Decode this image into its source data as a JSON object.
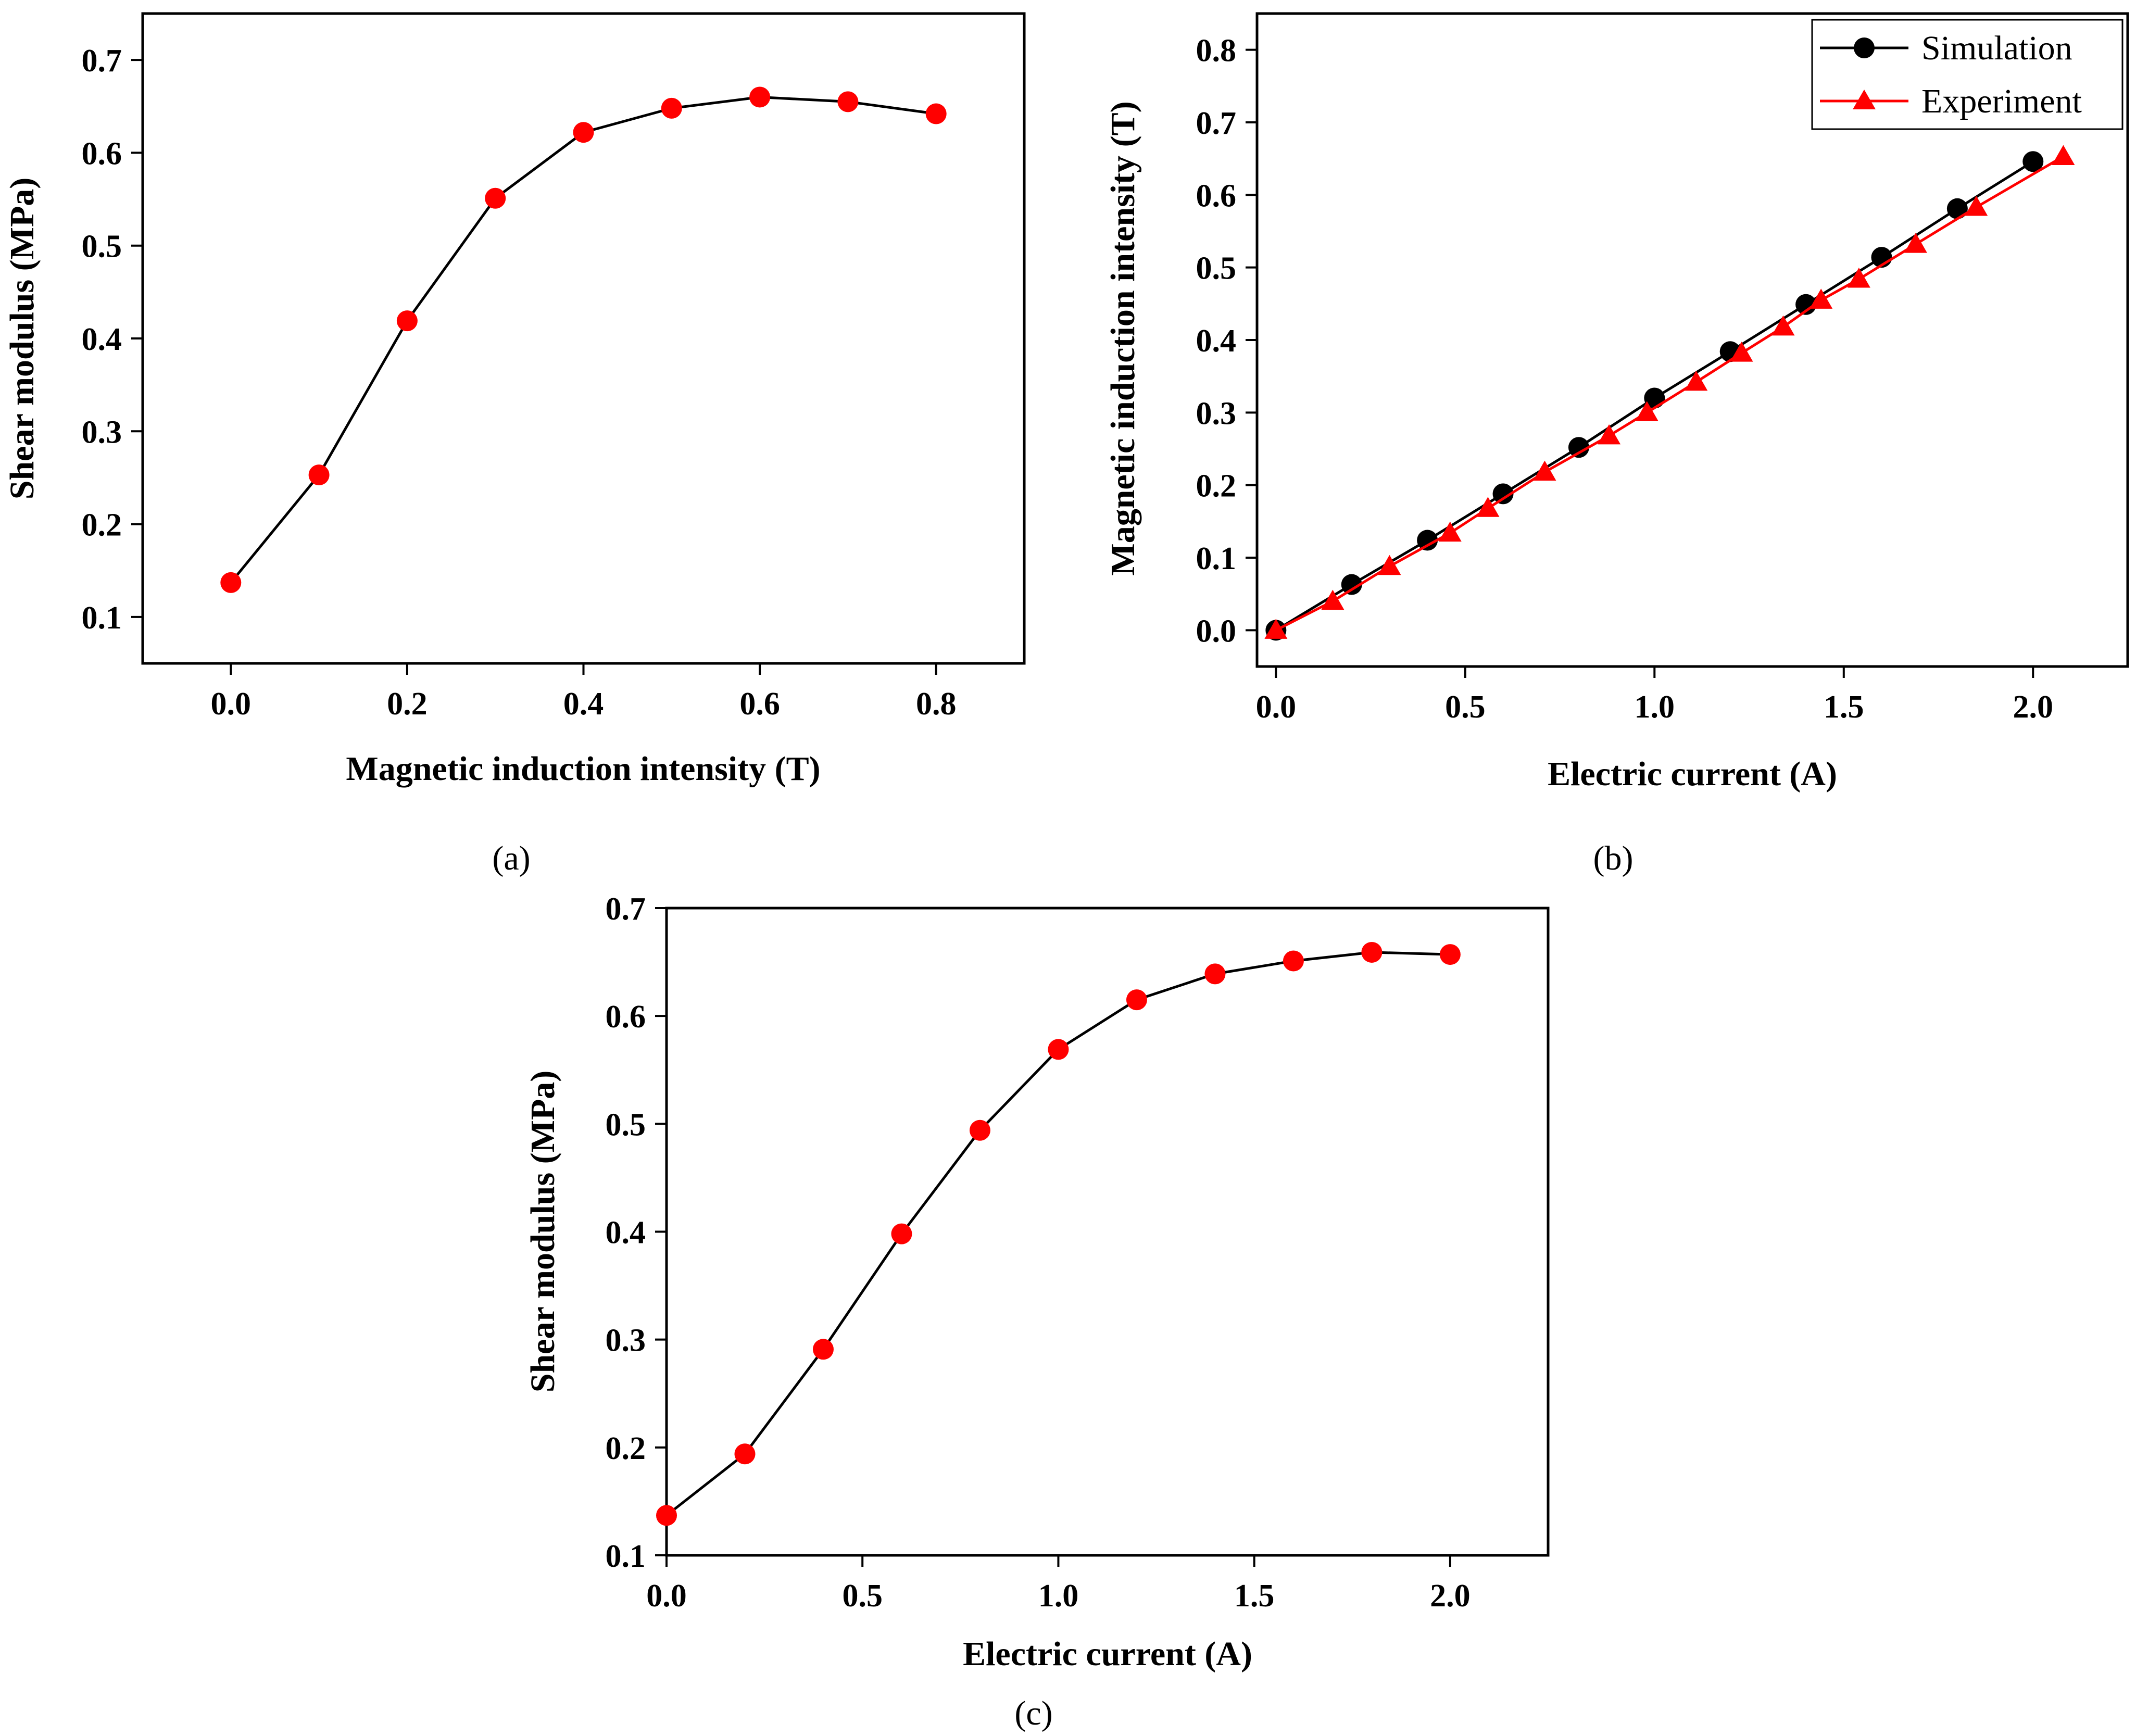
{
  "chart_data": [
    {
      "id": "a",
      "type": "line",
      "panel_label": "(a)",
      "title": "",
      "xlabel": "Magnetic induction intensity (T)",
      "ylabel": "Shear modulus (MPa)",
      "xlim": [
        -0.1,
        0.9
      ],
      "ylim": [
        0.05,
        0.75
      ],
      "xticks": [
        0.0,
        0.2,
        0.4,
        0.6,
        0.8
      ],
      "yticks": [
        0.1,
        0.2,
        0.3,
        0.4,
        0.5,
        0.6,
        0.7
      ],
      "xtick_labels": [
        "0.0",
        "0.2",
        "0.4",
        "0.6",
        "0.8"
      ],
      "ytick_labels": [
        "0.1",
        "0.2",
        "0.3",
        "0.4",
        "0.5",
        "0.6",
        "0.7"
      ],
      "grid": false,
      "series": [
        {
          "name": "Shear modulus",
          "line_color": "#000000",
          "marker": "circle",
          "marker_color": "#ff0000",
          "x": [
            0.0,
            0.1,
            0.2,
            0.3,
            0.4,
            0.5,
            0.6,
            0.7,
            0.8
          ],
          "y": [
            0.137,
            0.253,
            0.419,
            0.551,
            0.622,
            0.648,
            0.66,
            0.655,
            0.642
          ]
        }
      ]
    },
    {
      "id": "b",
      "type": "line",
      "panel_label": "(b)",
      "title": "",
      "xlabel": "Electric current (A)",
      "ylabel": "Magnetic induction intensity (T)",
      "xlim": [
        -0.05,
        2.25
      ],
      "ylim": [
        -0.05,
        0.85
      ],
      "xticks": [
        0.0,
        0.5,
        1.0,
        1.5,
        2.0
      ],
      "yticks": [
        0.0,
        0.1,
        0.2,
        0.3,
        0.4,
        0.5,
        0.6,
        0.7,
        0.8
      ],
      "xtick_labels": [
        "0.0",
        "0.5",
        "1.0",
        "1.5",
        "2.0"
      ],
      "ytick_labels": [
        "0.0",
        "0.1",
        "0.2",
        "0.3",
        "0.4",
        "0.5",
        "0.6",
        "0.7",
        "0.8"
      ],
      "grid": false,
      "legend_position": "top-right",
      "series": [
        {
          "name": "Simulation",
          "line_color": "#000000",
          "marker": "circle",
          "marker_color": "#000000",
          "x": [
            0.0,
            0.2,
            0.4,
            0.6,
            0.8,
            1.0,
            1.2,
            1.4,
            1.6,
            1.8,
            2.0
          ],
          "y": [
            0.0,
            0.063,
            0.124,
            0.188,
            0.252,
            0.32,
            0.384,
            0.449,
            0.514,
            0.581,
            0.646
          ]
        },
        {
          "name": "Experiment",
          "line_color": "#ff0000",
          "marker": "triangle",
          "marker_color": "#ff0000",
          "x": [
            0.0,
            0.15,
            0.3,
            0.46,
            0.56,
            0.71,
            0.88,
            0.98,
            1.11,
            1.23,
            1.34,
            1.44,
            1.54,
            1.69,
            1.85,
            2.08
          ],
          "y": [
            0.0,
            0.04,
            0.088,
            0.134,
            0.168,
            0.218,
            0.268,
            0.3,
            0.342,
            0.382,
            0.418,
            0.455,
            0.484,
            0.532,
            0.583,
            0.653
          ]
        }
      ]
    },
    {
      "id": "c",
      "type": "line",
      "panel_label": "(c)",
      "title": "",
      "xlabel": "Electric current (A)",
      "ylabel": "Shear modulus (MPa)",
      "xlim": [
        0.0,
        2.25
      ],
      "ylim": [
        0.1,
        0.7
      ],
      "xticks": [
        0.0,
        0.5,
        1.0,
        1.5,
        2.0
      ],
      "yticks": [
        0.1,
        0.2,
        0.3,
        0.4,
        0.5,
        0.6,
        0.7
      ],
      "xtick_labels": [
        "0.0",
        "0.5",
        "1.0",
        "1.5",
        "2.0"
      ],
      "ytick_labels": [
        "0.1",
        "0.2",
        "0.3",
        "0.4",
        "0.5",
        "0.6",
        "0.7"
      ],
      "grid": false,
      "series": [
        {
          "name": "Shear modulus",
          "line_color": "#000000",
          "marker": "circle",
          "marker_color": "#ff0000",
          "x": [
            0.0,
            0.2,
            0.4,
            0.6,
            0.8,
            1.0,
            1.2,
            1.4,
            1.6,
            1.8,
            2.0
          ],
          "y": [
            0.137,
            0.194,
            0.291,
            0.398,
            0.494,
            0.569,
            0.615,
            0.639,
            0.651,
            0.659,
            0.657
          ]
        }
      ]
    }
  ]
}
